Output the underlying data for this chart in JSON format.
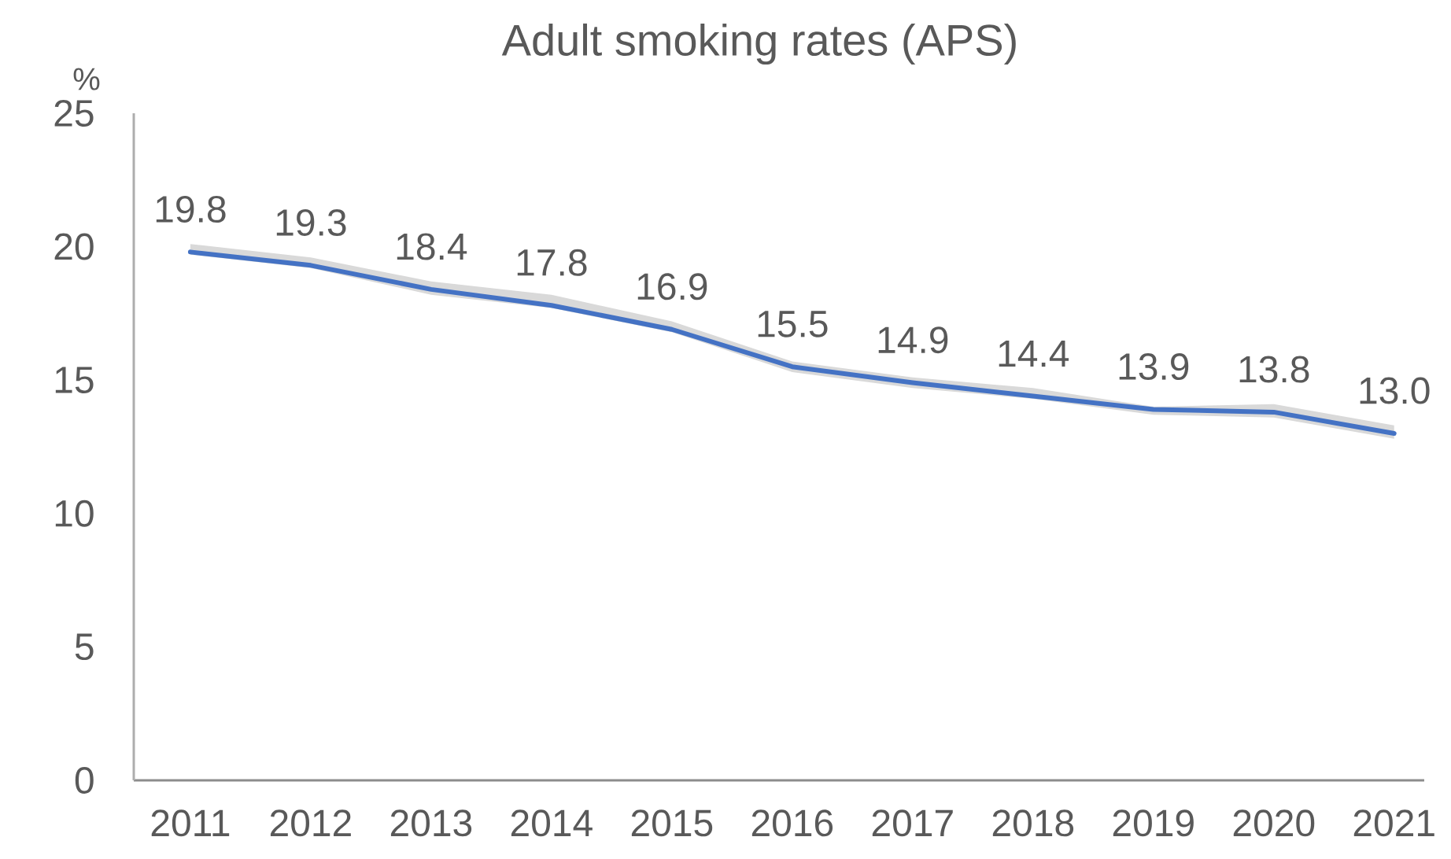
{
  "chart_data": {
    "type": "line",
    "title": "Adult smoking rates (APS)",
    "ylabel": "%",
    "categories": [
      "2011",
      "2012",
      "2013",
      "2014",
      "2015",
      "2016",
      "2017",
      "2018",
      "2019",
      "2020",
      "2021"
    ],
    "ylim": [
      0,
      25
    ],
    "yticks": [
      0,
      5,
      10,
      15,
      20,
      25
    ],
    "marker": "none",
    "line_style": "solid",
    "series": [
      {
        "color": "#4472c4",
        "values": [
          19.8,
          19.3,
          18.4,
          17.8,
          16.9,
          15.5,
          14.9,
          14.4,
          13.9,
          13.8,
          13.0
        ],
        "value_labels": [
          "19.8",
          "19.3",
          "18.4",
          "17.8",
          "16.9",
          "15.5",
          "14.9",
          "14.4",
          "13.9",
          "13.8",
          "13.0"
        ],
        "lower": [
          19.7,
          19.2,
          18.2,
          17.7,
          16.8,
          15.3,
          14.7,
          14.3,
          13.7,
          13.6,
          12.8
        ],
        "upper": [
          20.1,
          19.6,
          18.7,
          18.2,
          17.2,
          15.7,
          15.1,
          14.7,
          14.0,
          14.1,
          13.3
        ]
      }
    ]
  }
}
